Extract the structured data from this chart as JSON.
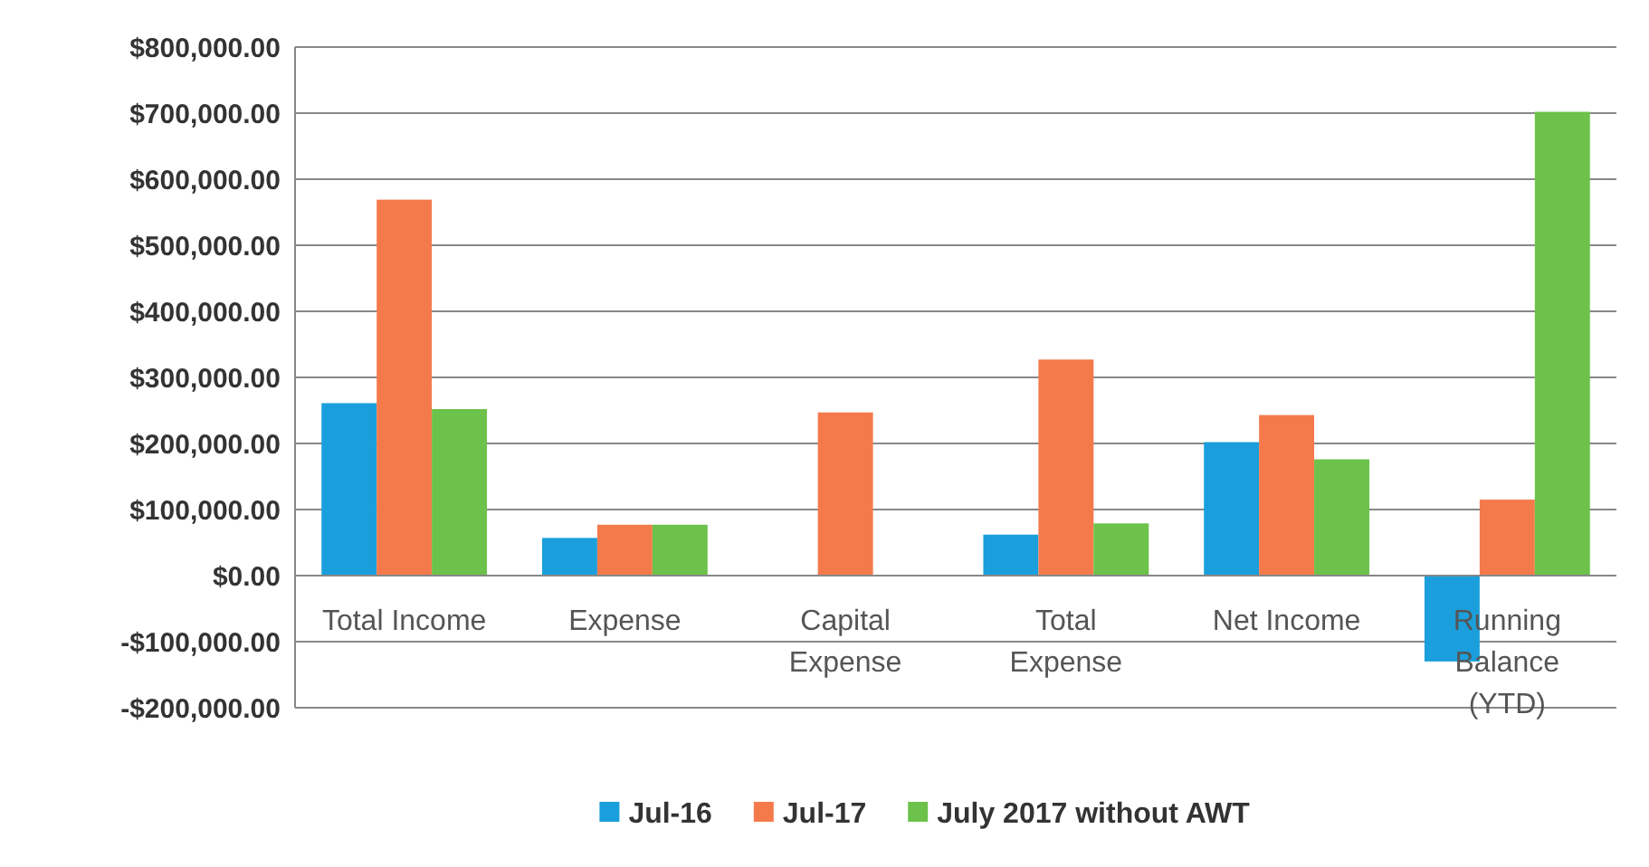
{
  "chart_data": {
    "type": "bar",
    "categories": [
      "Total Income",
      "Expense",
      "Capital Expense",
      "Total Expense",
      "Net Income",
      "Running Balance (YTD)"
    ],
    "series": [
      {
        "name": "Jul-16",
        "color": "#1a9fdc",
        "values": [
          261000,
          57000,
          null,
          62000,
          202000,
          -130000
        ]
      },
      {
        "name": "Jul-17",
        "color": "#f47a4c",
        "values": [
          569000,
          77000,
          247000,
          327000,
          243000,
          115000
        ]
      },
      {
        "name": "July 2017 without AWT",
        "color": "#6cc24a",
        "values": [
          252000,
          77000,
          null,
          79000,
          176000,
          702000
        ]
      }
    ],
    "ylim": [
      -200000,
      800000
    ],
    "yticks": [
      {
        "value": -200000,
        "label": "-$200,000.00"
      },
      {
        "value": -100000,
        "label": "-$100,000.00"
      },
      {
        "value": 0,
        "label": "$0.00"
      },
      {
        "value": 100000,
        "label": "$100,000.00"
      },
      {
        "value": 200000,
        "label": "$200,000.00"
      },
      {
        "value": 300000,
        "label": "$300,000.00"
      },
      {
        "value": 400000,
        "label": "$400,000.00"
      },
      {
        "value": 500000,
        "label": "$500,000.00"
      },
      {
        "value": 600000,
        "label": "$600,000.00"
      },
      {
        "value": 700000,
        "label": "$700,000.00"
      },
      {
        "value": 800000,
        "label": "$800,000.00"
      }
    ],
    "grid": "y",
    "legend": "bottom"
  }
}
